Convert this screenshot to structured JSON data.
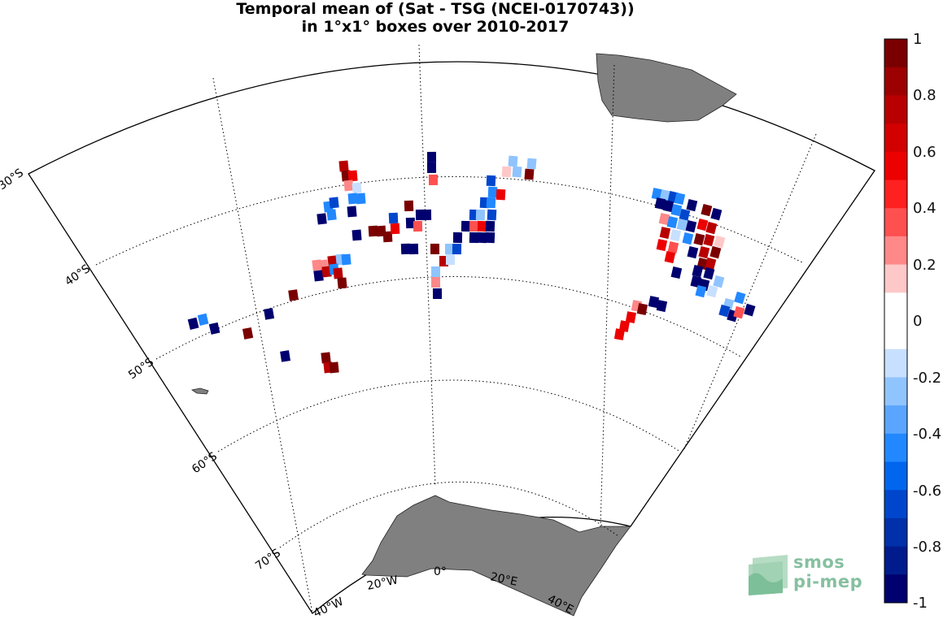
{
  "title": {
    "line1": "Temporal mean of (Sat - TSG (NCEI-0170743))",
    "line2": "in 1°x1° boxes over 2010-2017"
  },
  "map": {
    "lat_labels": [
      "30°S",
      "40°S",
      "50°S",
      "60°S",
      "70°S"
    ],
    "lon_labels": [
      "40°W",
      "20°W",
      "0°",
      "20°E",
      "40°E"
    ],
    "land_color": "#808080",
    "extent": {
      "lon": [
        -40,
        40
      ],
      "lat": [
        -75,
        -30
      ]
    }
  },
  "colorbar": {
    "min": -1,
    "max": 1,
    "tick_labels": [
      "1",
      "0.8",
      "0.6",
      "0.4",
      "0.2",
      "0",
      "-0.2",
      "-0.4",
      "-0.6",
      "-0.8",
      "-1"
    ],
    "colors": [
      "#7a0000",
      "#9c0000",
      "#b80000",
      "#d30000",
      "#ec0000",
      "#ff2020",
      "#ff5050",
      "#ff8888",
      "#ffc8c8",
      "#ffffff",
      "#ffffff",
      "#c8e0ff",
      "#90c4ff",
      "#5aa6ff",
      "#2288ff",
      "#0066ee",
      "#0046cc",
      "#0030aa",
      "#001c8c",
      "#00006e"
    ]
  },
  "logo": {
    "line1": "smos",
    "line2": "pi-mep"
  }
}
